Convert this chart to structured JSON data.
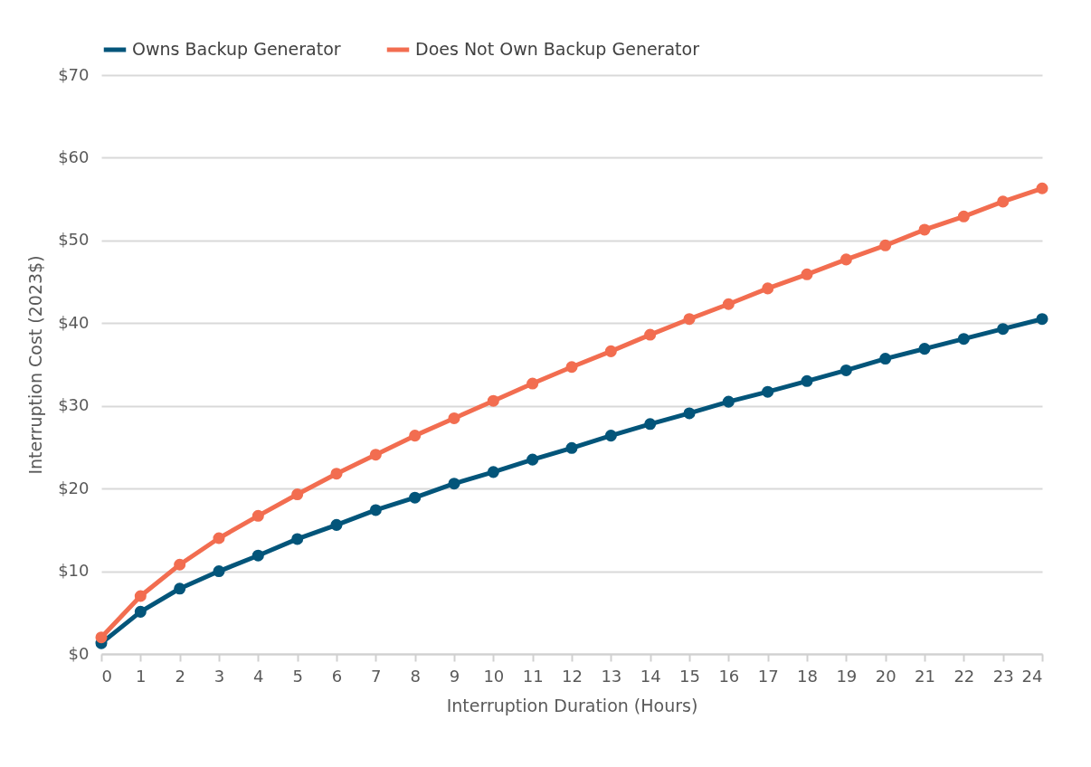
{
  "chart_data": {
    "type": "line",
    "xlabel": "Interruption Duration (Hours)",
    "ylabel": "Interruption Cost (2023$)",
    "x": [
      0,
      1,
      2,
      3,
      4,
      5,
      6,
      7,
      8,
      9,
      10,
      11,
      12,
      13,
      14,
      15,
      16,
      17,
      18,
      19,
      20,
      21,
      22,
      23,
      24
    ],
    "xlim": [
      0,
      24
    ],
    "xticks": [
      0,
      1,
      2,
      3,
      4,
      5,
      6,
      7,
      8,
      9,
      10,
      11,
      12,
      13,
      14,
      15,
      16,
      17,
      18,
      19,
      20,
      21,
      22,
      23,
      24
    ],
    "ylim": [
      0,
      70
    ],
    "yticks": [
      {
        "value": 0,
        "label": "$0"
      },
      {
        "value": 10,
        "label": "$10"
      },
      {
        "value": 20,
        "label": "$20"
      },
      {
        "value": 30,
        "label": "$30"
      },
      {
        "value": 40,
        "label": "$40"
      },
      {
        "value": 50,
        "label": "$50"
      },
      {
        "value": 60,
        "label": "$60"
      },
      {
        "value": 70,
        "label": "$70"
      }
    ],
    "grid": "y",
    "legend": "top",
    "marker": "circle",
    "line_style": "solid",
    "series": [
      {
        "name": "Owns Backup Generator",
        "color": "#03557a",
        "values": [
          1.3,
          5.1,
          7.9,
          10.0,
          11.9,
          13.9,
          15.6,
          17.4,
          18.9,
          20.6,
          22.0,
          23.5,
          24.9,
          26.4,
          27.8,
          29.1,
          30.5,
          31.7,
          33.0,
          34.3,
          35.7,
          36.9,
          38.1,
          39.3,
          40.5
        ]
      },
      {
        "name": "Does Not Own Backup Generator",
        "color": "#f26d50",
        "values": [
          2.0,
          7.0,
          10.8,
          14.0,
          16.7,
          19.3,
          21.8,
          24.1,
          26.4,
          28.5,
          30.6,
          32.7,
          34.7,
          36.6,
          38.6,
          40.5,
          42.3,
          44.2,
          45.9,
          47.7,
          49.4,
          51.3,
          52.9,
          54.7,
          56.3
        ]
      }
    ]
  }
}
